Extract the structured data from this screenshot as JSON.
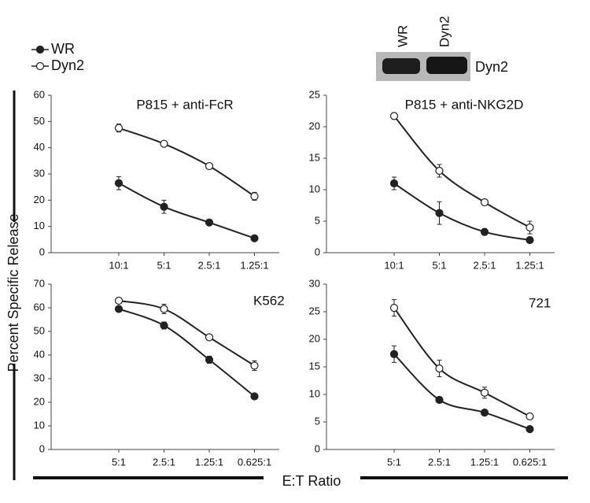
{
  "legend": [
    {
      "name": "WR",
      "color": "#222222",
      "fill": "#222222"
    },
    {
      "name": "Dyn2",
      "color": "#222222",
      "fill": "#ffffff"
    }
  ],
  "ylabel": "Percent Specific Release",
  "xlabel": "E:T Ratio",
  "blot": {
    "lanes": [
      "WR",
      "Dyn2"
    ],
    "label": "Dyn2"
  },
  "chart_data": [
    {
      "type": "line",
      "title": "P815 + anti-FcR",
      "categories": [
        "10:1",
        "5:1",
        "2.5:1",
        "1.25:1"
      ],
      "series": [
        {
          "values": [
            26.5,
            17.5,
            11.5,
            5.5
          ],
          "errors": [
            2.5,
            2.5,
            0.8,
            0.5
          ]
        },
        {
          "values": [
            47.5,
            41.5,
            33,
            21.5
          ],
          "errors": [
            1.5,
            1,
            0.8,
            1.5
          ]
        }
      ],
      "ylim": [
        0,
        60
      ],
      "yticks": [
        0,
        10,
        20,
        30,
        40,
        50,
        60
      ]
    },
    {
      "type": "line",
      "title": "P815 + anti-NKG2D",
      "categories": [
        "10:1",
        "5:1",
        "2.5:1",
        "1.25:1"
      ],
      "series": [
        {
          "values": [
            11,
            6.3,
            3.3,
            2
          ],
          "errors": [
            1,
            1.8,
            0.5,
            0.4
          ]
        },
        {
          "values": [
            21.7,
            13,
            8,
            4
          ],
          "errors": [
            0.5,
            1,
            0.3,
            1
          ]
        }
      ],
      "ylim": [
        0,
        25
      ],
      "yticks": [
        0,
        5,
        10,
        15,
        20,
        25
      ]
    },
    {
      "type": "line",
      "title": "K562",
      "categories": [
        "5:1",
        "2.5:1",
        "1.25:1",
        "0.625:1"
      ],
      "series": [
        {
          "values": [
            59.5,
            52.5,
            38,
            22.5
          ],
          "errors": [
            1,
            1.5,
            1.5,
            0.5
          ]
        },
        {
          "values": [
            63,
            59.5,
            47.5,
            35.5
          ],
          "errors": [
            0.5,
            2,
            1,
            2
          ]
        }
      ],
      "ylim": [
        0,
        70
      ],
      "yticks": [
        0,
        10,
        20,
        30,
        40,
        50,
        60,
        70
      ]
    },
    {
      "type": "line",
      "title": "721",
      "categories": [
        "5:1",
        "2.5:1",
        "1.25:1",
        "0.625:1"
      ],
      "series": [
        {
          "values": [
            17.3,
            9,
            6.7,
            3.7
          ],
          "errors": [
            1.5,
            0.3,
            0.4,
            0.3
          ]
        },
        {
          "values": [
            25.7,
            14.7,
            10.3,
            6
          ],
          "errors": [
            1.5,
            1.5,
            1,
            0.3
          ]
        }
      ],
      "ylim": [
        0,
        30
      ],
      "yticks": [
        0,
        5,
        10,
        15,
        20,
        25,
        30
      ]
    }
  ]
}
